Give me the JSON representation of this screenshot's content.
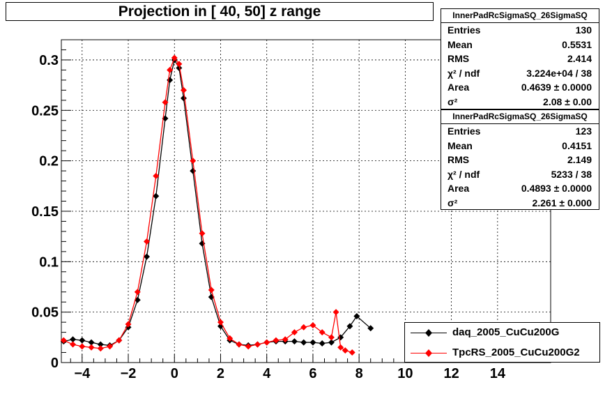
{
  "title": "Projection in [  40,  50] z range",
  "stats_boxes": [
    {
      "name": "InnerPadRcSigmaSQ_26SigmaSQ",
      "rows": [
        {
          "key": "Entries",
          "value": "130"
        },
        {
          "key": "Mean",
          "value": "0.5531"
        },
        {
          "key": "RMS",
          "value": "2.414"
        },
        {
          "key": "χ² / ndf",
          "value": "3.224e+04 / 38"
        },
        {
          "key": "Area",
          "value": "0.4639 ± 0.0000"
        },
        {
          "key": "σ²",
          "value": "2.08 ± 0.00"
        }
      ]
    },
    {
      "name": "InnerPadRcSigmaSQ_26SigmaSQ",
      "rows": [
        {
          "key": "Entries",
          "value": "123"
        },
        {
          "key": "Mean",
          "value": "0.4151"
        },
        {
          "key": "RMS",
          "value": "2.149"
        },
        {
          "key": "χ² / ndf",
          "value": "5233 / 38"
        },
        {
          "key": "Area",
          "value": "0.4893 ± 0.0000"
        },
        {
          "key": "σ²",
          "value": "2.261 ± 0.000"
        }
      ]
    }
  ],
  "legend": [
    {
      "label": "daq_2005_CuCu200G",
      "color": "#000000"
    },
    {
      "label": "TpcRS_2005_CuCu200G2",
      "color": "#ff0000"
    }
  ],
  "chart_data": {
    "type": "scatter",
    "title": "Projection in [  40,  50] z range",
    "xlabel": "",
    "ylabel": "",
    "xlim": [
      -4.9,
      16.3
    ],
    "ylim": [
      0,
      0.32
    ],
    "x_ticks": [
      -4,
      -2,
      0,
      2,
      4,
      6,
      8,
      10,
      12,
      14
    ],
    "y_ticks": [
      0,
      0.05,
      0.1,
      0.15,
      0.2,
      0.25,
      0.3
    ],
    "x_tick_labels": [
      "−4",
      "−2",
      "0",
      "2",
      "4",
      "6",
      "8",
      "10",
      "12",
      "14"
    ],
    "y_tick_labels": [
      "0",
      "0.05",
      "0.1",
      "0.15",
      "0.2",
      "0.25",
      "0.3"
    ],
    "grid": true,
    "legend_position": "bottom-right",
    "series": [
      {
        "name": "daq_2005_CuCu200G",
        "color": "#000000",
        "points": [
          [
            -4.8,
            0.021
          ],
          [
            -4.4,
            0.023
          ],
          [
            -4.0,
            0.022
          ],
          [
            -3.6,
            0.02
          ],
          [
            -3.2,
            0.018
          ],
          [
            -2.8,
            0.017
          ],
          [
            -2.4,
            0.022
          ],
          [
            -2.0,
            0.035
          ],
          [
            -1.6,
            0.062
          ],
          [
            -1.2,
            0.105
          ],
          [
            -0.8,
            0.165
          ],
          [
            -0.4,
            0.242
          ],
          [
            -0.2,
            0.28
          ],
          [
            0.0,
            0.3
          ],
          [
            0.2,
            0.292
          ],
          [
            0.4,
            0.262
          ],
          [
            0.8,
            0.19
          ],
          [
            1.2,
            0.118
          ],
          [
            1.6,
            0.065
          ],
          [
            2.0,
            0.036
          ],
          [
            2.4,
            0.022
          ],
          [
            2.8,
            0.018
          ],
          [
            3.2,
            0.017
          ],
          [
            3.6,
            0.018
          ],
          [
            4.0,
            0.02
          ],
          [
            4.4,
            0.021
          ],
          [
            4.8,
            0.021
          ],
          [
            5.2,
            0.021
          ],
          [
            5.6,
            0.02
          ],
          [
            6.0,
            0.02
          ],
          [
            6.4,
            0.019
          ],
          [
            6.8,
            0.02
          ],
          [
            7.2,
            0.025
          ],
          [
            7.6,
            0.036
          ],
          [
            7.9,
            0.046
          ],
          [
            8.5,
            0.034
          ]
        ]
      },
      {
        "name": "TpcRS_2005_CuCu200G2",
        "color": "#ff0000",
        "points": [
          [
            -4.8,
            0.022
          ],
          [
            -4.4,
            0.018
          ],
          [
            -4.0,
            0.016
          ],
          [
            -3.6,
            0.015
          ],
          [
            -3.2,
            0.014
          ],
          [
            -2.8,
            0.016
          ],
          [
            -2.4,
            0.022
          ],
          [
            -2.0,
            0.038
          ],
          [
            -1.6,
            0.07
          ],
          [
            -1.2,
            0.12
          ],
          [
            -0.8,
            0.185
          ],
          [
            -0.4,
            0.258
          ],
          [
            -0.2,
            0.29
          ],
          [
            0.0,
            0.302
          ],
          [
            0.2,
            0.296
          ],
          [
            0.4,
            0.27
          ],
          [
            0.8,
            0.2
          ],
          [
            1.2,
            0.128
          ],
          [
            1.6,
            0.072
          ],
          [
            2.0,
            0.04
          ],
          [
            2.4,
            0.024
          ],
          [
            2.8,
            0.018
          ],
          [
            3.2,
            0.016
          ],
          [
            3.6,
            0.018
          ],
          [
            4.0,
            0.02
          ],
          [
            4.4,
            0.022
          ],
          [
            4.8,
            0.023
          ],
          [
            5.2,
            0.03
          ],
          [
            5.6,
            0.035
          ],
          [
            6.0,
            0.037
          ],
          [
            6.4,
            0.03
          ],
          [
            6.8,
            0.025
          ],
          [
            7.0,
            0.05
          ],
          [
            7.2,
            0.015
          ],
          [
            7.4,
            0.012
          ],
          [
            7.7,
            0.01
          ]
        ]
      }
    ]
  }
}
